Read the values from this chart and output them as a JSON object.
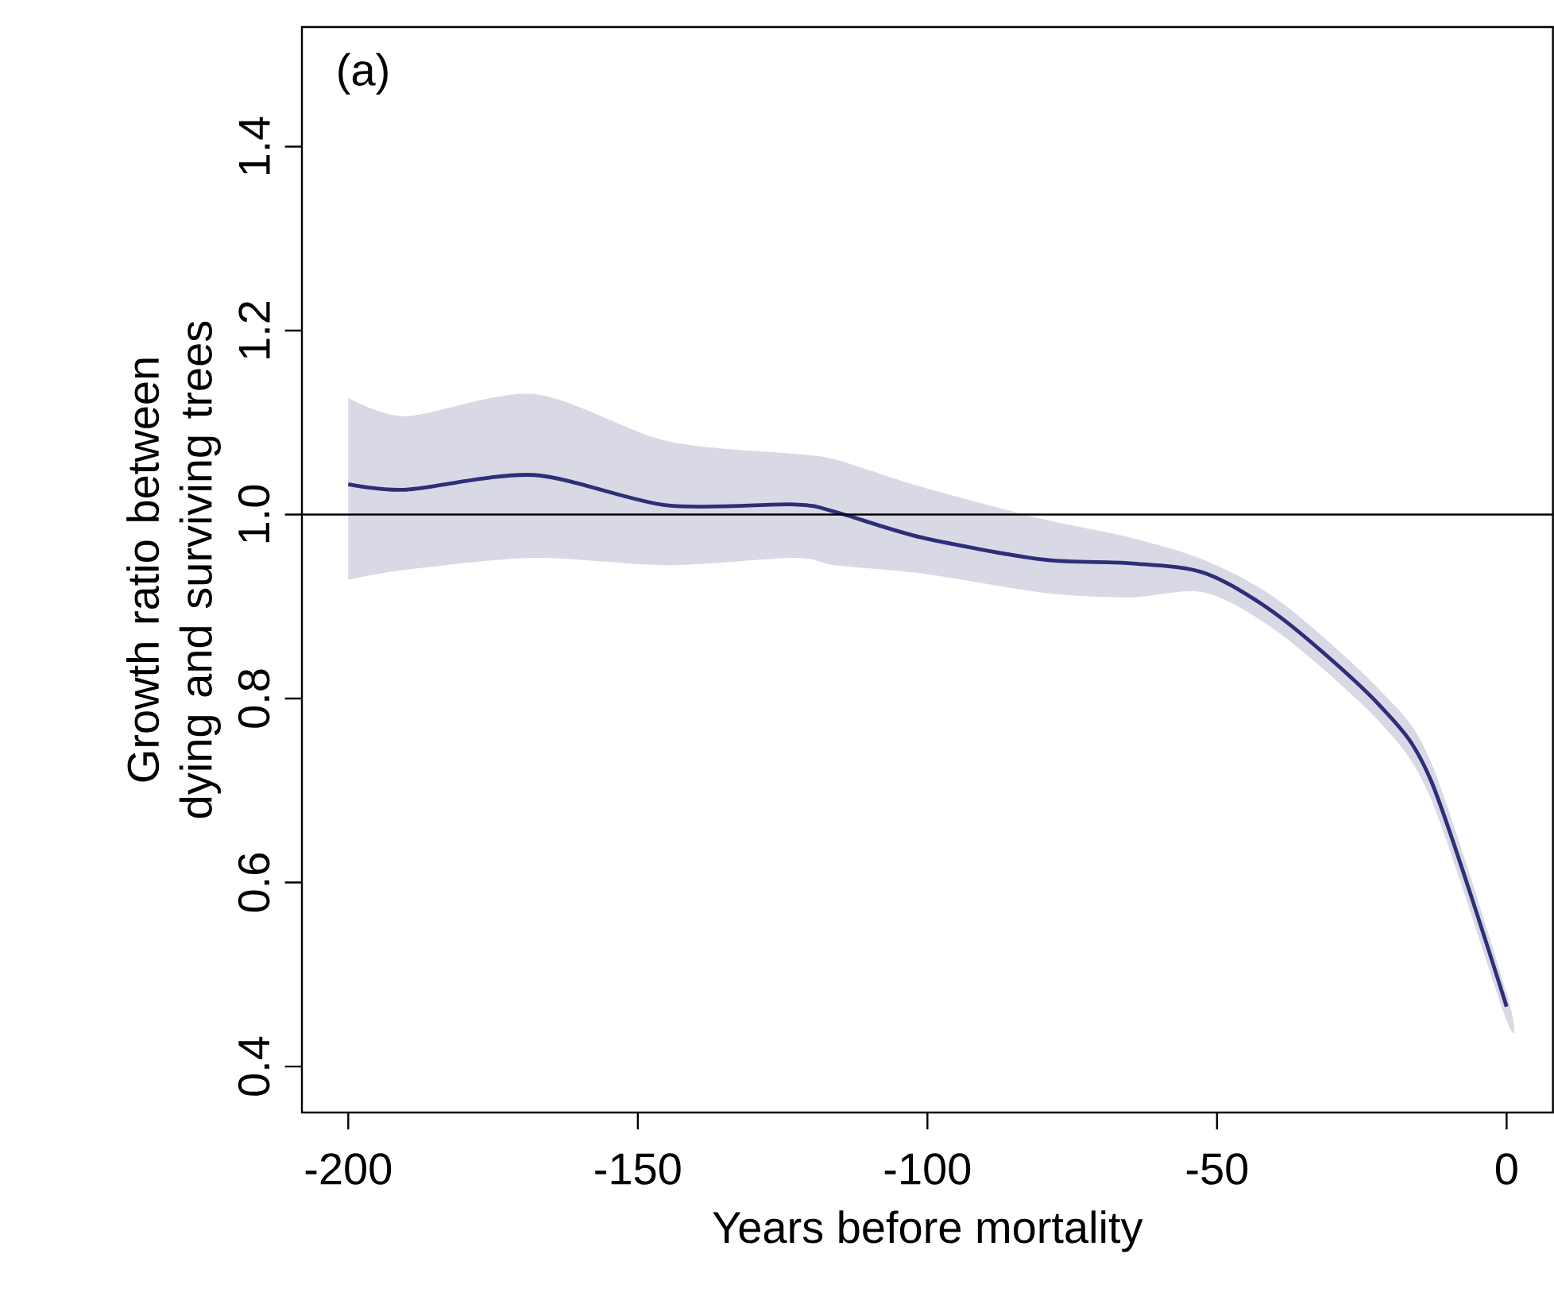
{
  "chart_data": {
    "type": "line",
    "xlabel": "Years before mortality",
    "ylabel": "Growth ratio between dying and surviving trees",
    "annotations": [
      "(a)"
    ],
    "x": [
      -200,
      -190,
      -168,
      -145,
      -123,
      -116,
      -101,
      -80,
      -65,
      -52,
      -39,
      -22,
      -13,
      0
    ],
    "series": [
      {
        "color": "#2e2e78",
        "values": [
          1.033,
          1.027,
          1.043,
          1.01,
          1.011,
          1.003,
          0.975,
          0.951,
          0.947,
          0.936,
          0.888,
          0.793,
          0.71,
          0.465
        ],
        "upper": [
          1.127,
          1.107,
          1.131,
          1.08,
          1.066,
          1.06,
          1.03,
          0.995,
          0.975,
          0.95,
          0.905,
          0.81,
          0.73,
          0.48
        ],
        "lower": [
          0.929,
          0.94,
          0.953,
          0.945,
          0.953,
          0.945,
          0.936,
          0.915,
          0.91,
          0.915,
          0.87,
          0.775,
          0.69,
          0.45
        ]
      }
    ],
    "xlim": [
      -208,
      8
    ],
    "ylim": [
      0.35,
      1.53
    ],
    "xticks": [
      -200,
      -150,
      -100,
      -50,
      0
    ],
    "yticks": [
      0.4,
      0.6,
      0.8,
      {
        "value": 1,
        "label": "1.0"
      },
      1.2,
      1.4
    ],
    "ref_lines": [
      {
        "axis": "y",
        "value": 1.0,
        "color": "#000000"
      }
    ],
    "line_style": "solid",
    "grid": false
  }
}
